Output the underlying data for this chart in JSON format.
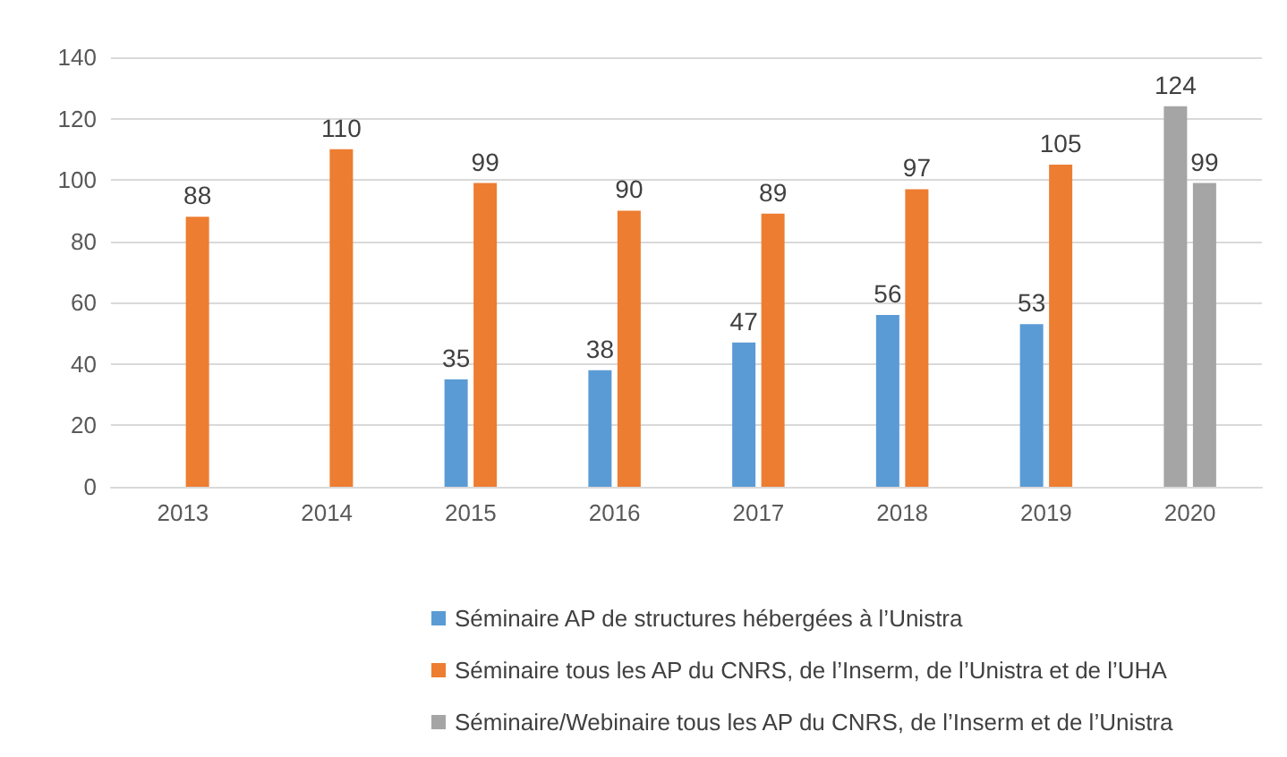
{
  "chart_data": {
    "type": "bar",
    "categories": [
      "2013",
      "2014",
      "2015",
      "2016",
      "2017",
      "2018",
      "2019",
      "2020"
    ],
    "series": [
      {
        "name": "Séminaire AP de structures hébergées à l’Unistra",
        "color": "#5b9bd5",
        "values": [
          null,
          null,
          35,
          38,
          47,
          56,
          53,
          null
        ]
      },
      {
        "name": "Séminaire tous les AP du CNRS, de l’Inserm, de l’Unistra et de l’UHA",
        "color": "#ed7d31",
        "values": [
          88,
          110,
          99,
          90,
          89,
          97,
          105,
          null
        ]
      },
      {
        "name": "Séminaire/Webinaire tous les AP du CNRS, de l’Inserm et de l’Unistra",
        "color": "#a5a5a5",
        "values": [
          null,
          null,
          null,
          null,
          null,
          null,
          null,
          124
        ]
      },
      {
        "color": "#a5a5a5",
        "values": [
          null,
          null,
          null,
          null,
          null,
          null,
          null,
          99
        ]
      }
    ],
    "ylim": [
      0,
      140
    ],
    "yticks": [
      0,
      20,
      40,
      60,
      80,
      100,
      120,
      140
    ],
    "grid": "y",
    "legend": "bottom",
    "data_labels": true
  }
}
